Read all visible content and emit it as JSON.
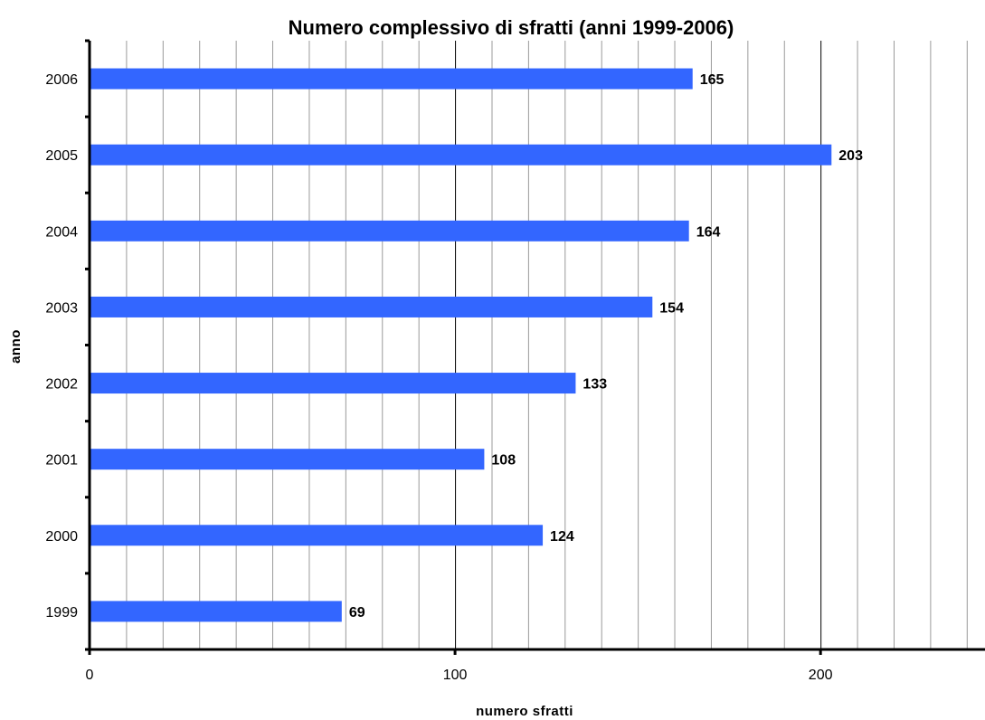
{
  "chart_data": {
    "type": "bar",
    "orientation": "horizontal",
    "title": "Numero complessivo di sfratti (anni 1999-2006)",
    "xlabel": "numero sfratti",
    "ylabel": "anno",
    "categories": [
      "2006",
      "2005",
      "2004",
      "2003",
      "2002",
      "2001",
      "2000",
      "1999"
    ],
    "values": [
      165,
      203,
      164,
      154,
      133,
      108,
      124,
      69
    ],
    "data_labels": [
      "165",
      "203",
      "164",
      "154",
      "133",
      "108",
      "124",
      "69"
    ],
    "xlim": [
      0,
      245
    ],
    "x_ticks": [
      0,
      100,
      200
    ],
    "x_tick_labels": [
      "0",
      "100",
      "200"
    ],
    "minor_grid_step": 10,
    "grid": true,
    "legend": "none",
    "bar_color": "#3366ff",
    "major_grid_color": "#000000",
    "minor_grid_color": "#9a9a9a"
  }
}
